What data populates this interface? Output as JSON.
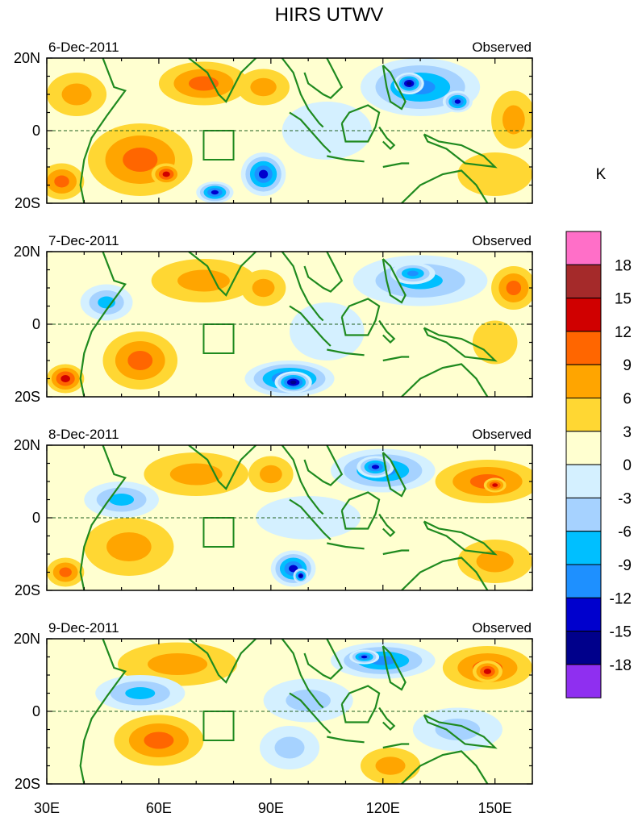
{
  "chart_data": {
    "type": "heatmap",
    "title": "HIRS UTWV",
    "colorbar": {
      "unit_label": "K",
      "tick_labels": [
        "18",
        "15",
        "12",
        "9",
        "6",
        "3",
        "0",
        "-3",
        "-6",
        "-9",
        "-12",
        "-15",
        "-18"
      ],
      "levels": [
        18,
        15,
        12,
        9,
        6,
        3,
        0,
        -3,
        -6,
        -9,
        -12,
        -15,
        -18
      ],
      "colors": [
        "#ff6fc8",
        "#a52a2a",
        "#d00000",
        "#ff6600",
        "#ffa500",
        "#ffd733",
        "#ffffd0",
        "#d4f0ff",
        "#a6d2ff",
        "#00bfff",
        "#1e90ff",
        "#0000cd",
        "#00008b",
        "#8f2ff0"
      ]
    },
    "x_axis": {
      "range": [
        30,
        160
      ],
      "ticks": [
        30,
        60,
        90,
        120,
        150
      ],
      "tick_labels": [
        "30E",
        "60E",
        "90E",
        "120E",
        "150E"
      ]
    },
    "y_axis": {
      "range": [
        -20,
        20
      ],
      "ticks": [
        20,
        0,
        -20
      ],
      "tick_labels": [
        "20N",
        "0",
        "20S"
      ]
    },
    "panels": [
      {
        "date": "6-Dec-2011",
        "label": "Observed",
        "blobs": [
          {
            "lon": 55,
            "lat": -8,
            "rx": 14,
            "ry": 10,
            "v": 9
          },
          {
            "lon": 62,
            "lat": -12,
            "rx": 4,
            "ry": 3,
            "v": 12
          },
          {
            "lon": 72,
            "lat": 13,
            "rx": 12,
            "ry": 6,
            "v": 9
          },
          {
            "lon": 88,
            "lat": 12,
            "rx": 7,
            "ry": 5,
            "v": 6
          },
          {
            "lon": 38,
            "lat": 10,
            "rx": 8,
            "ry": 6,
            "v": 6
          },
          {
            "lon": 34,
            "lat": -14,
            "rx": 6,
            "ry": 5,
            "v": 9
          },
          {
            "lon": 130,
            "lat": 12,
            "rx": 16,
            "ry": 8,
            "v": -12
          },
          {
            "lon": 127,
            "lat": 13,
            "rx": 4,
            "ry": 3,
            "v": -18
          },
          {
            "lon": 140,
            "lat": 8,
            "rx": 4,
            "ry": 3,
            "v": -15
          },
          {
            "lon": 88,
            "lat": -12,
            "rx": 6,
            "ry": 6,
            "v": -15
          },
          {
            "lon": 75,
            "lat": -17,
            "rx": 5,
            "ry": 3,
            "v": -15
          },
          {
            "lon": 105,
            "lat": 0,
            "rx": 12,
            "ry": 8,
            "v": 0
          },
          {
            "lon": 155,
            "lat": 3,
            "rx": 6,
            "ry": 8,
            "v": 6
          },
          {
            "lon": 150,
            "lat": -12,
            "rx": 10,
            "ry": 6,
            "v": 3
          }
        ]
      },
      {
        "date": "7-Dec-2011",
        "label": "Observed",
        "blobs": [
          {
            "lon": 55,
            "lat": -10,
            "rx": 10,
            "ry": 8,
            "v": 9
          },
          {
            "lon": 72,
            "lat": 12,
            "rx": 14,
            "ry": 6,
            "v": 6
          },
          {
            "lon": 88,
            "lat": 10,
            "rx": 6,
            "ry": 5,
            "v": 6
          },
          {
            "lon": 35,
            "lat": -15,
            "rx": 5,
            "ry": 4,
            "v": 12
          },
          {
            "lon": 46,
            "lat": 6,
            "rx": 7,
            "ry": 5,
            "v": -9
          },
          {
            "lon": 130,
            "lat": 12,
            "rx": 18,
            "ry": 7,
            "v": -9
          },
          {
            "lon": 128,
            "lat": 14,
            "rx": 6,
            "ry": 3,
            "v": -12
          },
          {
            "lon": 95,
            "lat": -15,
            "rx": 12,
            "ry": 5,
            "v": -15
          },
          {
            "lon": 96,
            "lat": -16,
            "rx": 5,
            "ry": 3,
            "v": -18
          },
          {
            "lon": 105,
            "lat": -2,
            "rx": 10,
            "ry": 8,
            "v": -3
          },
          {
            "lon": 155,
            "lat": 10,
            "rx": 6,
            "ry": 6,
            "v": 9
          },
          {
            "lon": 150,
            "lat": -5,
            "rx": 6,
            "ry": 6,
            "v": 3
          }
        ]
      },
      {
        "date": "8-Dec-2011",
        "label": "Observed",
        "blobs": [
          {
            "lon": 52,
            "lat": -8,
            "rx": 12,
            "ry": 8,
            "v": 6
          },
          {
            "lon": 70,
            "lat": 12,
            "rx": 14,
            "ry": 6,
            "v": 6
          },
          {
            "lon": 90,
            "lat": 12,
            "rx": 6,
            "ry": 5,
            "v": 6
          },
          {
            "lon": 148,
            "lat": 10,
            "rx": 14,
            "ry": 6,
            "v": 9
          },
          {
            "lon": 150,
            "lat": 9,
            "rx": 3,
            "ry": 2,
            "v": 12
          },
          {
            "lon": 35,
            "lat": -15,
            "rx": 5,
            "ry": 4,
            "v": 9
          },
          {
            "lon": 50,
            "lat": 5,
            "rx": 10,
            "ry": 5,
            "v": -9
          },
          {
            "lon": 120,
            "lat": 13,
            "rx": 14,
            "ry": 6,
            "v": -12
          },
          {
            "lon": 118,
            "lat": 14,
            "rx": 5,
            "ry": 3,
            "v": -15
          },
          {
            "lon": 96,
            "lat": -14,
            "rx": 6,
            "ry": 5,
            "v": -15
          },
          {
            "lon": 98,
            "lat": -16,
            "rx": 2,
            "ry": 2,
            "v": -18
          },
          {
            "lon": 100,
            "lat": 0,
            "rx": 14,
            "ry": 6,
            "v": -3
          },
          {
            "lon": 150,
            "lat": -12,
            "rx": 10,
            "ry": 6,
            "v": 6
          }
        ]
      },
      {
        "date": "9-Dec-2011",
        "label": "Observed",
        "blobs": [
          {
            "lon": 60,
            "lat": -8,
            "rx": 12,
            "ry": 7,
            "v": 9
          },
          {
            "lon": 65,
            "lat": 13,
            "rx": 16,
            "ry": 6,
            "v": 6
          },
          {
            "lon": 148,
            "lat": 12,
            "rx": 12,
            "ry": 6,
            "v": 9
          },
          {
            "lon": 148,
            "lat": 11,
            "rx": 4,
            "ry": 3,
            "v": 12
          },
          {
            "lon": 55,
            "lat": 5,
            "rx": 12,
            "ry": 5,
            "v": -9
          },
          {
            "lon": 120,
            "lat": 14,
            "rx": 14,
            "ry": 5,
            "v": -12
          },
          {
            "lon": 115,
            "lat": 15,
            "rx": 4,
            "ry": 2,
            "v": -15
          },
          {
            "lon": 100,
            "lat": 3,
            "rx": 12,
            "ry": 6,
            "v": -6
          },
          {
            "lon": 95,
            "lat": -10,
            "rx": 8,
            "ry": 6,
            "v": -6
          },
          {
            "lon": 140,
            "lat": -5,
            "rx": 12,
            "ry": 6,
            "v": -6
          },
          {
            "lon": 122,
            "lat": -15,
            "rx": 8,
            "ry": 5,
            "v": 6
          }
        ]
      }
    ]
  }
}
